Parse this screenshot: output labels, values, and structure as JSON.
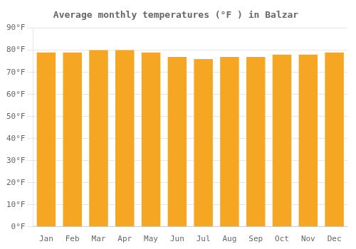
{
  "chart_data": {
    "type": "bar",
    "title": "Average monthly temperatures (°F ) in Balzar",
    "categories": [
      "Jan",
      "Feb",
      "Mar",
      "Apr",
      "May",
      "Jun",
      "Jul",
      "Aug",
      "Sep",
      "Oct",
      "Nov",
      "Dec"
    ],
    "values": [
      79,
      79,
      80,
      80,
      79,
      77,
      76,
      77,
      77,
      78,
      78,
      79
    ],
    "color": "#F5A623",
    "ylim": [
      0,
      90
    ],
    "yticks": [
      {
        "value": 0,
        "label": "0°F"
      },
      {
        "value": 10,
        "label": "10°F"
      },
      {
        "value": 20,
        "label": "20°F"
      },
      {
        "value": 30,
        "label": "30°F"
      },
      {
        "value": 40,
        "label": "40°F"
      },
      {
        "value": 50,
        "label": "50°F"
      },
      {
        "value": 60,
        "label": "60°F"
      },
      {
        "value": 70,
        "label": "70°F"
      },
      {
        "value": 80,
        "label": "80°F"
      },
      {
        "value": 90,
        "label": "90°F"
      }
    ],
    "grid": true
  }
}
